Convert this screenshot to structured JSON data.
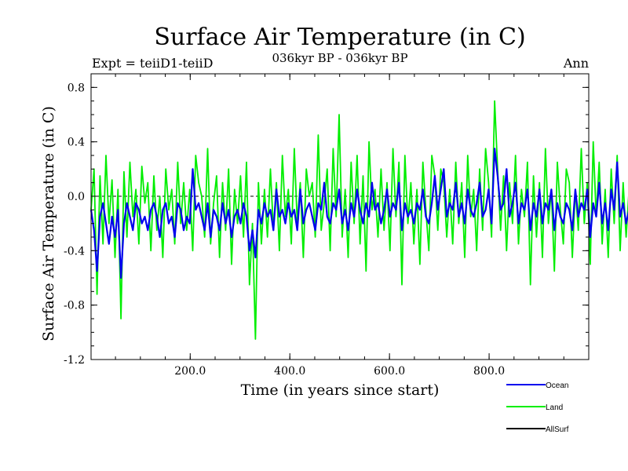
{
  "chart_data": {
    "type": "line",
    "title": "Surface Air Temperature (in C)",
    "subtitle": "036kyr BP - 036kyr BP",
    "experiment_label": "Expt = teiiD1-teiiD",
    "period_label": "Ann",
    "xlabel": "Time (in years since start)",
    "ylabel": "Surface Air Temperature (in C)",
    "xlim": [
      1,
      1000
    ],
    "ylim": [
      -1.2,
      0.9
    ],
    "x_ticks": [
      200,
      400,
      600,
      800
    ],
    "x_tick_labels": [
      "200.0",
      "400.0",
      "600.0",
      "800.0"
    ],
    "y_ticks": [
      -1.2,
      -0.8,
      -0.4,
      0.0,
      0.4,
      0.8
    ],
    "y_tick_labels": [
      "-1.2",
      "-0.8",
      "-0.4",
      "0.0",
      "0.4",
      "0.8"
    ],
    "reference_line": 0.0,
    "legend_position": "below-right",
    "x_step": 6,
    "series": [
      {
        "name": "Land",
        "color": "#00ee00",
        "values": [
          -0.1,
          0.2,
          -0.72,
          0.15,
          -0.35,
          0.3,
          -0.2,
          0.12,
          -0.45,
          0.05,
          -0.9,
          0.18,
          -0.3,
          0.25,
          -0.15,
          0.05,
          -0.35,
          0.22,
          -0.05,
          0.1,
          -0.4,
          0.15,
          -0.25,
          0.0,
          -0.45,
          0.2,
          -0.1,
          0.05,
          -0.35,
          0.25,
          -0.2,
          0.1,
          -0.25,
          0.05,
          -0.4,
          0.3,
          0.1,
          0.0,
          -0.3,
          0.35,
          -0.35,
          -0.05,
          0.15,
          -0.45,
          0.1,
          -0.25,
          0.2,
          -0.5,
          0.05,
          -0.2,
          0.15,
          -0.3,
          0.25,
          -0.65,
          -0.2,
          -1.05,
          0.1,
          -0.35,
          0.05,
          -0.3,
          0.2,
          -0.25,
          0.1,
          -0.4,
          0.3,
          -0.15,
          0.05,
          -0.35,
          0.35,
          -0.2,
          0.1,
          -0.45,
          0.2,
          0.0,
          0.1,
          -0.3,
          0.45,
          -0.25,
          -0.05,
          0.2,
          -0.4,
          0.35,
          -0.15,
          0.6,
          -0.3,
          0.05,
          -0.45,
          0.25,
          -0.2,
          0.3,
          -0.35,
          0.15,
          -0.55,
          0.4,
          -0.1,
          0.05,
          -0.3,
          0.2,
          -0.25,
          0.1,
          -0.4,
          0.35,
          -0.15,
          0.25,
          -0.65,
          0.3,
          -0.2,
          0.1,
          -0.35,
          0.05,
          -0.5,
          0.25,
          -0.1,
          -0.4,
          0.3,
          0.15,
          -0.25,
          0.2,
          0.1,
          -0.3,
          0.05,
          -0.35,
          0.25,
          -0.2,
          0.1,
          -0.45,
          0.3,
          -0.15,
          0.05,
          -0.4,
          0.2,
          -0.25,
          0.35,
          0.1,
          -0.3,
          0.7,
          0.2,
          -0.25,
          0.15,
          -0.4,
          0.1,
          -0.2,
          0.3,
          -0.35,
          0.05,
          -0.15,
          0.25,
          -0.65,
          0.15,
          -0.3,
          0.1,
          -0.45,
          0.35,
          -0.2,
          0.05,
          -0.55,
          0.25,
          -0.1,
          -0.35,
          0.2,
          0.1,
          -0.45,
          0.05,
          -0.25,
          0.35,
          -0.2,
          0.1,
          -0.5,
          0.4,
          -0.15,
          0.25,
          -0.35,
          0.05,
          -0.45,
          0.2,
          -0.2,
          0.3,
          -0.4,
          0.1,
          -0.3,
          0.05,
          -0.15,
          0.3,
          -0.55,
          0.15,
          -0.25,
          0.05,
          -0.6,
          0.3,
          -0.2,
          0.1,
          -0.35
        ]
      },
      {
        "name": "Ocean",
        "color": "#0000ee",
        "values": [
          -0.1,
          -0.25,
          -0.55,
          -0.15,
          -0.05,
          -0.2,
          -0.35,
          -0.15,
          -0.3,
          -0.1,
          -0.6,
          -0.2,
          -0.05,
          -0.15,
          -0.25,
          -0.05,
          -0.1,
          -0.2,
          -0.15,
          -0.25,
          -0.1,
          -0.05,
          -0.15,
          -0.3,
          -0.1,
          -0.05,
          -0.2,
          -0.15,
          -0.3,
          -0.05,
          -0.1,
          -0.25,
          -0.15,
          -0.2,
          0.2,
          -0.1,
          -0.05,
          -0.15,
          -0.25,
          -0.05,
          -0.3,
          -0.1,
          -0.15,
          -0.25,
          -0.05,
          -0.2,
          -0.1,
          -0.3,
          -0.15,
          -0.1,
          -0.2,
          -0.05,
          -0.15,
          -0.4,
          -0.25,
          -0.45,
          -0.1,
          -0.2,
          -0.05,
          -0.15,
          -0.1,
          -0.25,
          0.05,
          -0.15,
          -0.1,
          -0.2,
          -0.05,
          -0.15,
          -0.1,
          -0.25,
          0.05,
          -0.2,
          -0.1,
          -0.05,
          -0.15,
          -0.25,
          -0.05,
          -0.1,
          0.1,
          -0.15,
          -0.2,
          -0.05,
          -0.1,
          0.05,
          -0.2,
          -0.1,
          -0.25,
          -0.05,
          -0.15,
          0.05,
          -0.1,
          -0.2,
          -0.05,
          -0.15,
          0.1,
          -0.1,
          -0.05,
          -0.2,
          -0.1,
          0.05,
          -0.15,
          -0.05,
          -0.1,
          0.1,
          -0.25,
          -0.05,
          -0.15,
          -0.1,
          -0.2,
          -0.05,
          -0.1,
          0.05,
          -0.15,
          -0.2,
          -0.05,
          0.15,
          -0.1,
          0.05,
          0.2,
          -0.15,
          -0.05,
          -0.1,
          0.1,
          -0.15,
          -0.05,
          -0.2,
          0.05,
          -0.1,
          -0.15,
          -0.05,
          0.1,
          -0.15,
          -0.1,
          0.05,
          -0.2,
          0.35,
          0.15,
          -0.1,
          -0.05,
          0.2,
          -0.15,
          -0.05,
          0.1,
          -0.2,
          -0.05,
          -0.1,
          0.05,
          -0.25,
          -0.05,
          -0.15,
          0.05,
          -0.2,
          -0.05,
          -0.1,
          0.05,
          -0.25,
          -0.05,
          -0.15,
          -0.2,
          -0.05,
          -0.1,
          -0.25,
          0.05,
          -0.15,
          -0.05,
          -0.1,
          0.05,
          -0.3,
          -0.05,
          -0.15,
          0.1,
          -0.2,
          -0.05,
          -0.25,
          0.05,
          -0.1,
          0.25,
          -0.15,
          -0.05,
          -0.2,
          -0.1,
          -0.25,
          0.05,
          -0.3,
          -0.15,
          -0.05,
          -0.2,
          -0.35,
          -0.1,
          -0.05,
          -0.15,
          -0.25
        ]
      },
      {
        "name": "AllSurf",
        "color": "#000000",
        "values": []
      }
    ]
  }
}
